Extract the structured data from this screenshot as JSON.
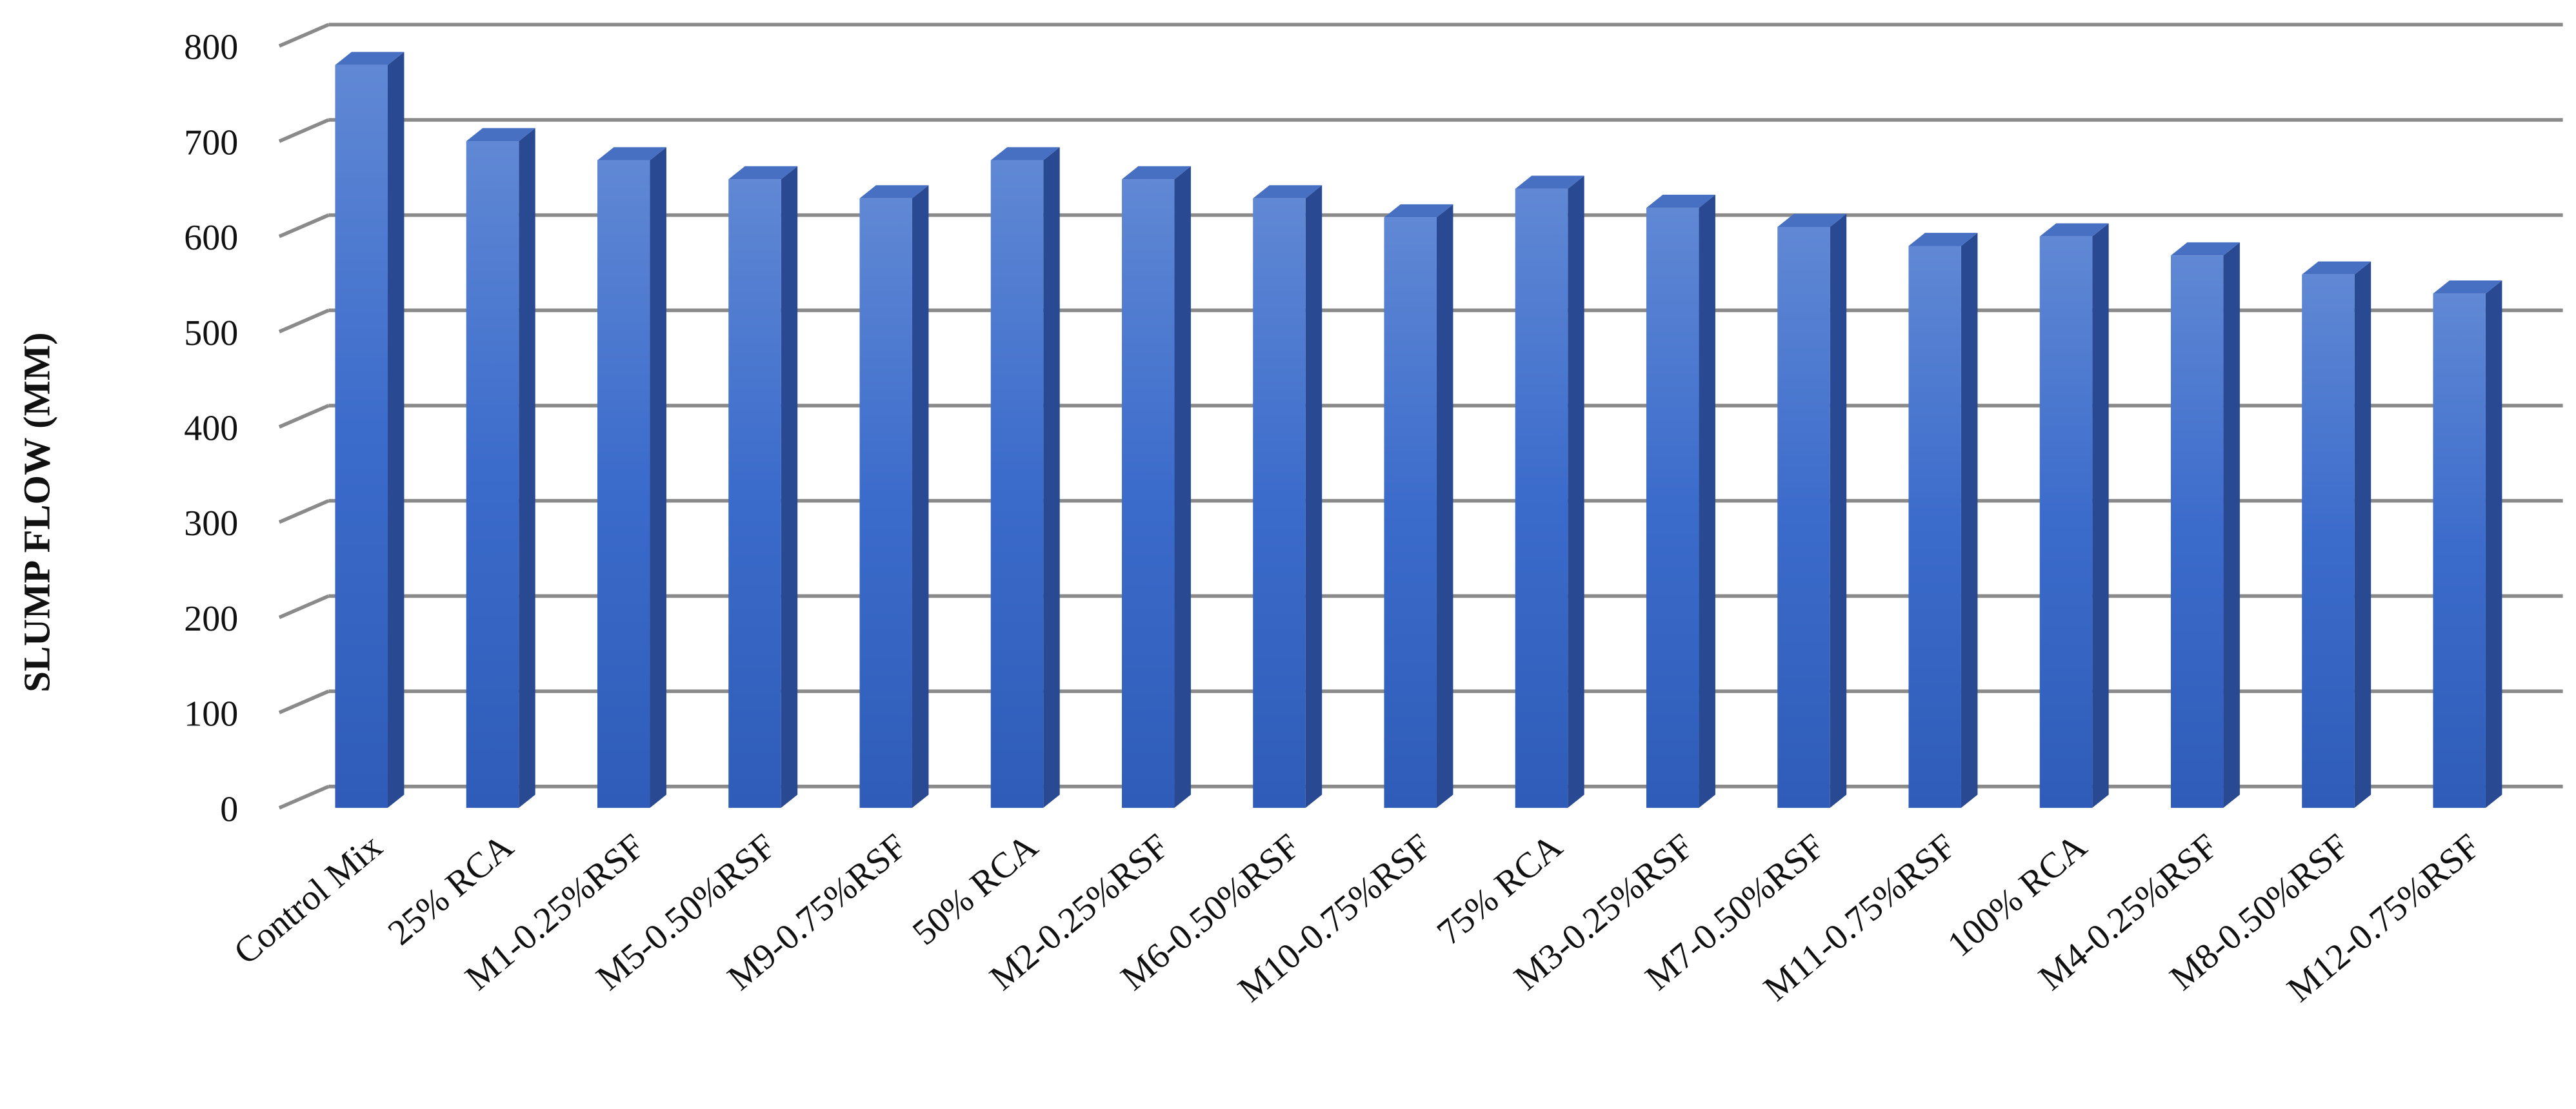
{
  "chart_data": {
    "type": "bar3d",
    "y_label": "SLUMP FLOW (MM)",
    "categories": [
      "Control Mix",
      "25% RCA",
      "M1-0.25%RSF",
      "M5-0.50%RSF",
      "M9-0.75%RSF",
      "50% RCA",
      "M2-0.25%RSF",
      "M6-0.50%RSF",
      "M10-0.75%RSF",
      "75% RCA",
      "M3-0.25%RSF",
      "M7-0.50%RSF",
      "M11-0.75%RSF",
      "100% RCA",
      "M4-0.25%RSF",
      "M8-0.50%RSF",
      "M12-0.75%RSF"
    ],
    "values": [
      780,
      700,
      680,
      660,
      640,
      680,
      660,
      640,
      620,
      650,
      630,
      610,
      590,
      600,
      580,
      560,
      540
    ],
    "color": "#3a67c4",
    "ylim": [
      0,
      800
    ],
    "yticks": [
      0,
      100,
      200,
      300,
      400,
      500,
      600,
      700,
      800
    ],
    "grid": true
  }
}
